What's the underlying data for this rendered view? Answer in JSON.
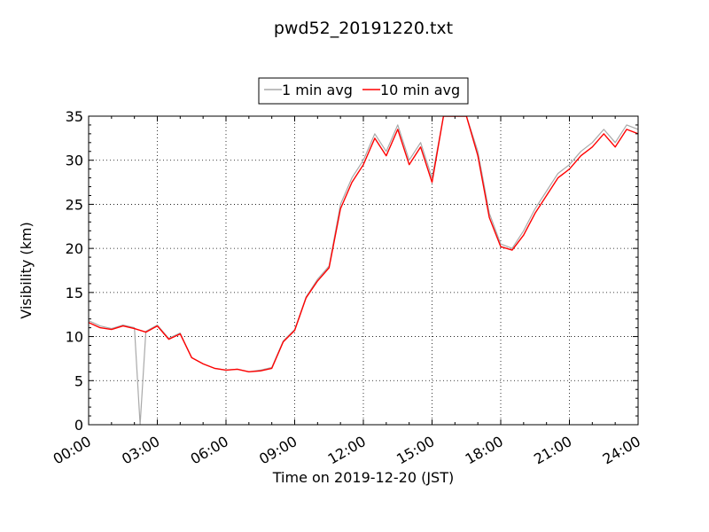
{
  "chart_data": {
    "type": "line",
    "title": "pwd52_20191220.txt",
    "xlabel": "Time on 2019-12-20 (JST)",
    "ylabel": "Visibility (km)",
    "xlim": [
      "00:00",
      "24:00"
    ],
    "ylim": [
      0,
      35
    ],
    "grid": true,
    "legend_position": "top-center",
    "x_ticks": [
      "00:00",
      "03:00",
      "06:00",
      "09:00",
      "12:00",
      "15:00",
      "18:00",
      "21:00",
      "24:00"
    ],
    "y_ticks": [
      "0",
      "5",
      "10",
      "15",
      "20",
      "25",
      "30",
      "35"
    ],
    "series": [
      {
        "name": "1 min avg",
        "color": "#a9a9a9",
        "x": [
          "00:00",
          "00:30",
          "01:00",
          "01:30",
          "02:00",
          "02:15",
          "02:30",
          "03:00",
          "03:30",
          "04:00",
          "04:30",
          "05:00",
          "05:30",
          "06:00",
          "06:30",
          "07:00",
          "07:30",
          "08:00",
          "08:30",
          "09:00",
          "09:30",
          "10:00",
          "10:30",
          "11:00",
          "11:30",
          "12:00",
          "12:30",
          "13:00",
          "13:30",
          "14:00",
          "14:30",
          "15:00",
          "15:30",
          "16:00",
          "16:30",
          "17:00",
          "17:30",
          "18:00",
          "18:30",
          "19:00",
          "19:30",
          "20:00",
          "20:30",
          "21:00",
          "21:30",
          "22:00",
          "22:30",
          "23:00",
          "23:30",
          "24:00"
        ],
        "values": [
          11.8,
          11.2,
          10.9,
          11.3,
          11.0,
          0.0,
          10.6,
          11.3,
          9.8,
          10.4,
          7.6,
          6.9,
          6.4,
          6.2,
          6.3,
          6.0,
          6.2,
          6.5,
          9.5,
          10.8,
          14.5,
          16.5,
          18.0,
          25.0,
          28.0,
          30.0,
          33.0,
          31.0,
          34.0,
          30.0,
          32.0,
          28.0,
          35.0,
          35.0,
          35.0,
          31.0,
          24.0,
          20.5,
          20.0,
          22.0,
          24.5,
          26.5,
          28.5,
          29.5,
          31.0,
          32.0,
          33.5,
          32.0,
          34.0,
          33.5
        ]
      },
      {
        "name": "10 min avg",
        "color": "#ff0000",
        "x": [
          "00:00",
          "00:30",
          "01:00",
          "01:30",
          "02:00",
          "02:30",
          "03:00",
          "03:30",
          "04:00",
          "04:30",
          "05:00",
          "05:30",
          "06:00",
          "06:30",
          "07:00",
          "07:30",
          "08:00",
          "08:30",
          "09:00",
          "09:30",
          "10:00",
          "10:30",
          "11:00",
          "11:30",
          "12:00",
          "12:30",
          "13:00",
          "13:30",
          "14:00",
          "14:30",
          "15:00",
          "15:30",
          "16:00",
          "16:30",
          "17:00",
          "17:30",
          "18:00",
          "18:30",
          "19:00",
          "19:30",
          "20:00",
          "20:30",
          "21:00",
          "21:30",
          "22:00",
          "22:30",
          "23:00",
          "23:30",
          "24:00"
        ],
        "values": [
          11.6,
          11.0,
          10.8,
          11.2,
          10.9,
          10.5,
          11.2,
          9.7,
          10.3,
          7.6,
          6.9,
          6.4,
          6.2,
          6.3,
          6.0,
          6.1,
          6.4,
          9.4,
          10.7,
          14.4,
          16.3,
          17.8,
          24.5,
          27.5,
          29.5,
          32.5,
          30.5,
          33.5,
          29.5,
          31.5,
          27.5,
          35.0,
          35.0,
          35.0,
          30.5,
          23.5,
          20.2,
          19.8,
          21.5,
          24.0,
          26.0,
          28.0,
          29.0,
          30.5,
          31.5,
          33.0,
          31.5,
          33.5,
          33.0
        ]
      }
    ]
  }
}
